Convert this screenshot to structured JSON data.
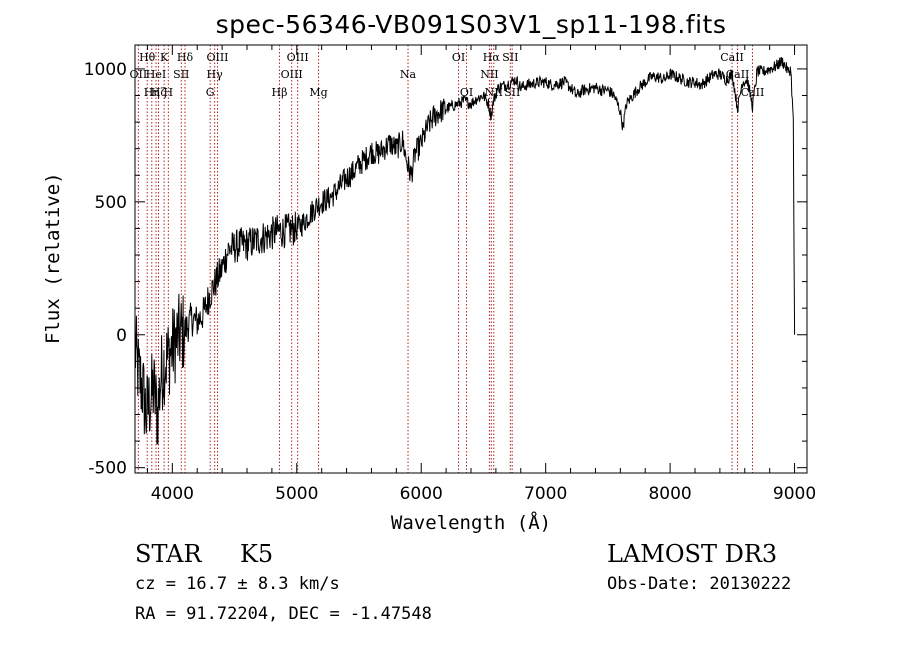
{
  "chart_data": {
    "type": "line",
    "title": "spec-56346-VB091S03V1_sp11-198.fits",
    "xlabel": "Wavelength (Å)",
    "ylabel": "Flux (relative)",
    "xlim": [
      3700,
      9100
    ],
    "ylim": [
      -520,
      1090
    ],
    "xticks": [
      4000,
      5000,
      6000,
      7000,
      8000,
      9000
    ],
    "yticks": [
      -500,
      0,
      500,
      1000
    ],
    "series": [
      {
        "name": "flux",
        "x": [
          3700,
          3730,
          3760,
          3790,
          3820,
          3850,
          3880,
          3910,
          3940,
          3970,
          4000,
          4030,
          4060,
          4090,
          4120,
          4150,
          4200,
          4250,
          4300,
          4350,
          4400,
          4450,
          4500,
          4550,
          4600,
          4650,
          4700,
          4750,
          4800,
          4850,
          4900,
          4950,
          5000,
          5050,
          5100,
          5150,
          5200,
          5250,
          5300,
          5350,
          5400,
          5450,
          5500,
          5550,
          5600,
          5650,
          5700,
          5750,
          5800,
          5850,
          5890,
          5920,
          5950,
          6000,
          6050,
          6100,
          6150,
          6200,
          6250,
          6300,
          6350,
          6400,
          6450,
          6500,
          6540,
          6562,
          6580,
          6620,
          6680,
          6720,
          6760,
          6800,
          6850,
          6900,
          6950,
          7000,
          7050,
          7100,
          7150,
          7200,
          7250,
          7300,
          7350,
          7400,
          7450,
          7500,
          7550,
          7600,
          7620,
          7650,
          7700,
          7750,
          7800,
          7850,
          7900,
          7950,
          8000,
          8050,
          8100,
          8150,
          8200,
          8250,
          8300,
          8350,
          8400,
          8450,
          8500,
          8542,
          8580,
          8620,
          8662,
          8700,
          8750,
          8800,
          8850,
          8900,
          8950,
          8970,
          8990,
          9000
        ],
        "values": [
          -50,
          -150,
          -200,
          -300,
          -250,
          -200,
          -300,
          -150,
          -100,
          -80,
          -50,
          -20,
          0,
          10,
          30,
          60,
          50,
          80,
          150,
          200,
          250,
          320,
          330,
          340,
          340,
          350,
          360,
          370,
          380,
          390,
          390,
          395,
          400,
          420,
          450,
          480,
          500,
          510,
          530,
          560,
          590,
          610,
          640,
          660,
          690,
          680,
          700,
          720,
          700,
          730,
          640,
          600,
          680,
          720,
          780,
          820,
          840,
          850,
          860,
          870,
          880,
          870,
          890,
          900,
          870,
          820,
          880,
          930,
          940,
          950,
          960,
          930,
          940,
          945,
          950,
          950,
          940,
          945,
          950,
          930,
          900,
          920,
          925,
          930,
          920,
          920,
          900,
          840,
          780,
          870,
          900,
          930,
          950,
          970,
          970,
          960,
          980,
          970,
          960,
          950,
          950,
          940,
          960,
          980,
          980,
          960,
          980,
          850,
          950,
          960,
          860,
          990,
          990,
          1000,
          1010,
          1030,
          990,
          1000,
          800,
          0
        ]
      }
    ],
    "lines": [
      {
        "x": 3727,
        "label": "OII",
        "tier": 2
      },
      {
        "x": 3798,
        "label": "Hθ",
        "tier": 1
      },
      {
        "x": 3835,
        "label": "Hη",
        "tier": 3
      },
      {
        "x": 3869,
        "label": "HeI",
        "tier": 2
      },
      {
        "x": 3889,
        "label": "Hζ",
        "tier": 3
      },
      {
        "x": 3934,
        "label": "K",
        "tier": 1
      },
      {
        "x": 3968,
        "label": "H",
        "tier": 3
      },
      {
        "x": 4072,
        "label": "SII",
        "tier": 2
      },
      {
        "x": 4102,
        "label": "Hδ",
        "tier": 1
      },
      {
        "x": 4304,
        "label": "G",
        "tier": 3
      },
      {
        "x": 4340,
        "label": "Hγ",
        "tier": 2
      },
      {
        "x": 4363,
        "label": "OIII",
        "tier": 1
      },
      {
        "x": 4861,
        "label": "Hβ",
        "tier": 3
      },
      {
        "x": 4959,
        "label": "OIII",
        "tier": 2
      },
      {
        "x": 5007,
        "label": "OIII",
        "tier": 1
      },
      {
        "x": 5175,
        "label": "Mg",
        "tier": 3
      },
      {
        "x": 5894,
        "label": "Na",
        "tier": 2
      },
      {
        "x": 6300,
        "label": "OI",
        "tier": 1
      },
      {
        "x": 6364,
        "label": "OI",
        "tier": 3
      },
      {
        "x": 6548,
        "label": "NII",
        "tier": 2
      },
      {
        "x": 6563,
        "label": "Hα",
        "tier": 1
      },
      {
        "x": 6583,
        "label": "NII",
        "tier": 3
      },
      {
        "x": 6716,
        "label": "SII",
        "tier": 1
      },
      {
        "x": 6731,
        "label": "SII",
        "tier": 3
      },
      {
        "x": 8498,
        "label": "CaII",
        "tier": 1
      },
      {
        "x": 8542,
        "label": "CaII",
        "tier": 2
      },
      {
        "x": 8662,
        "label": "CaII",
        "tier": 3
      }
    ]
  },
  "info": {
    "class": "STAR",
    "subclass": "K5",
    "survey": "LAMOST DR3",
    "cz": "cz = 16.7 ± 8.3 km/s",
    "obs_date": "Obs-Date: 20130222",
    "coords": "RA =  91.72204, DEC =  -1.47548"
  },
  "colors": {
    "line_marker": "#b22222",
    "spectrum": "#000000"
  }
}
